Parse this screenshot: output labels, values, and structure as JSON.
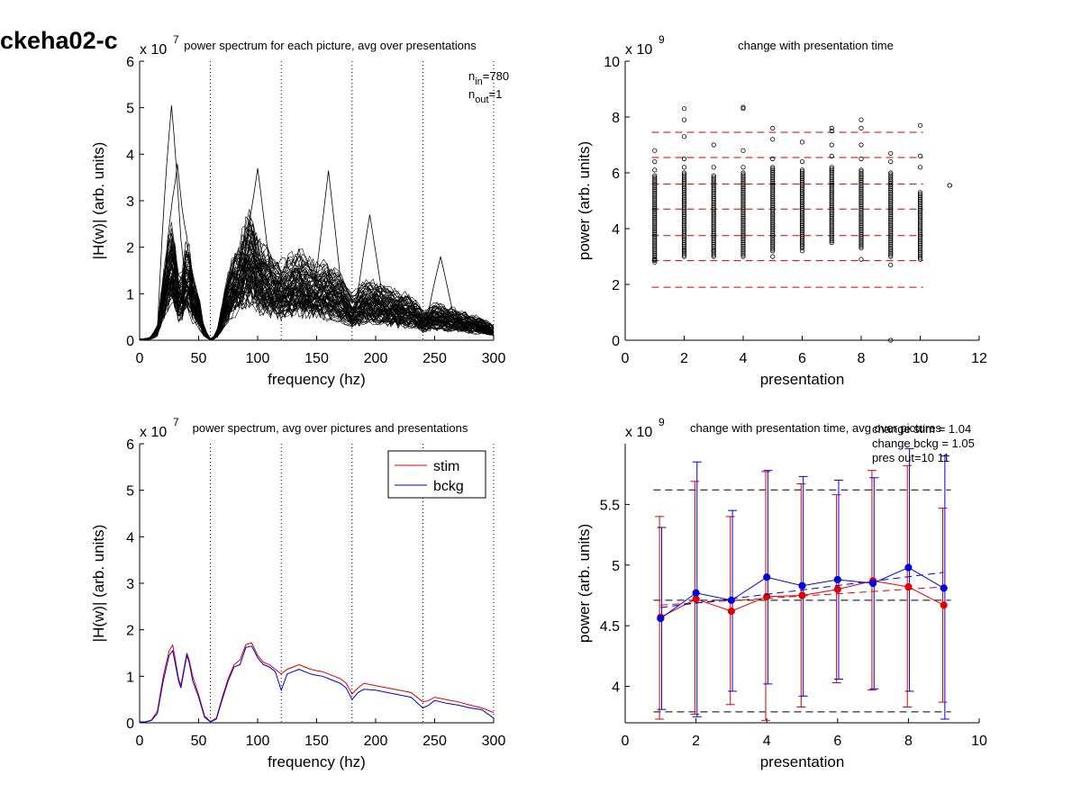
{
  "figure_title": "ckeha02-c",
  "chart_data": [
    {
      "id": "tl",
      "type": "line",
      "title": "power spectrum for each picture, avg over presentations",
      "xlabel": "frequency (hz)",
      "ylabel": "|H(w)| (arb. units)",
      "y_multiplier": "x 10",
      "y_exponent": "7",
      "xlim": [
        0,
        300
      ],
      "ylim": [
        0,
        6
      ],
      "xticks": [
        0,
        50,
        100,
        150,
        200,
        250,
        300
      ],
      "yticks": [
        0,
        1,
        2,
        3,
        4,
        5,
        6
      ],
      "vlines": [
        60,
        120,
        180,
        240,
        300
      ],
      "annotations": [
        {
          "base": "n",
          "sub": "in",
          "text": "=780"
        },
        {
          "base": "n",
          "sub": "out",
          "text": "=1"
        }
      ],
      "mean_curve": {
        "x": [
          0,
          5,
          10,
          15,
          20,
          25,
          28,
          30,
          33,
          35,
          40,
          42,
          45,
          50,
          55,
          60,
          65,
          70,
          75,
          80,
          85,
          90,
          95,
          100,
          105,
          110,
          115,
          120,
          125,
          130,
          135,
          140,
          145,
          150,
          155,
          160,
          165,
          170,
          175,
          180,
          185,
          190,
          200,
          210,
          220,
          230,
          240,
          245,
          250,
          260,
          270,
          280,
          290,
          300
        ],
        "y": [
          0.02,
          0.02,
          0.05,
          0.2,
          0.9,
          1.5,
          1.6,
          1.3,
          0.9,
          0.75,
          1.45,
          1.3,
          0.9,
          0.6,
          0.15,
          0.02,
          0.08,
          0.5,
          0.9,
          1.2,
          1.3,
          1.65,
          1.7,
          1.4,
          1.25,
          1.2,
          1.1,
          1.05,
          1.1,
          1.15,
          1.2,
          1.15,
          1.1,
          1.05,
          1.05,
          1.0,
          0.95,
          0.9,
          0.75,
          0.6,
          0.7,
          0.8,
          0.78,
          0.72,
          0.65,
          0.6,
          0.4,
          0.42,
          0.5,
          0.45,
          0.4,
          0.35,
          0.3,
          0.2
        ]
      },
      "peaks": [
        {
          "x": 27,
          "y": 5.05
        },
        {
          "x": 32,
          "y": 3.8
        },
        {
          "x": 100,
          "y": 3.7
        },
        {
          "x": 160,
          "y": 3.65
        },
        {
          "x": 195,
          "y": 2.7
        },
        {
          "x": 255,
          "y": 1.8
        }
      ]
    },
    {
      "id": "tr",
      "type": "scatter",
      "title": "change with presentation time",
      "xlabel": "presentation",
      "ylabel": "power (arb. units)",
      "y_multiplier": "x 10",
      "y_exponent": "9",
      "xlim": [
        0,
        12
      ],
      "ylim": [
        0,
        10
      ],
      "xticks": [
        0,
        2,
        4,
        6,
        8,
        10,
        12
      ],
      "yticks": [
        0,
        2,
        4,
        6,
        8,
        10
      ],
      "hlines": [
        1.9,
        2.85,
        3.75,
        4.7,
        5.6,
        6.55,
        7.45
      ],
      "hline_xrange": [
        1,
        10
      ],
      "columns": [
        {
          "x": 1,
          "min": 2.8,
          "max": 5.9,
          "outliers": [
            6.1,
            6.4,
            6.8,
            2.9
          ]
        },
        {
          "x": 2,
          "min": 3.0,
          "max": 6.0,
          "outliers": [
            6.5,
            7.3,
            7.9,
            8.3,
            3.2,
            6.2
          ]
        },
        {
          "x": 3,
          "min": 3.0,
          "max": 5.9,
          "outliers": [
            6.2,
            7.0,
            3.2
          ]
        },
        {
          "x": 4,
          "min": 3.0,
          "max": 6.0,
          "outliers": [
            6.2,
            6.8,
            8.3,
            8.35
          ]
        },
        {
          "x": 5,
          "min": 3.2,
          "max": 6.2,
          "outliers": [
            7.2,
            7.6,
            6.5,
            3.0
          ]
        },
        {
          "x": 6,
          "min": 3.3,
          "max": 6.1,
          "outliers": [
            7.1,
            6.4,
            3.2
          ]
        },
        {
          "x": 7,
          "min": 3.5,
          "max": 6.2,
          "outliers": [
            7.0,
            7.5,
            7.6,
            6.6
          ]
        },
        {
          "x": 8,
          "min": 3.3,
          "max": 6.1,
          "outliers": [
            7.0,
            7.6,
            7.9,
            2.9,
            6.5
          ]
        },
        {
          "x": 9,
          "min": 3.0,
          "max": 6.0,
          "outliers": [
            6.4,
            6.7,
            2.7,
            0.0
          ]
        },
        {
          "x": 10,
          "min": 2.9,
          "max": 5.3,
          "outliers": [
            6.2,
            6.6,
            7.7
          ]
        },
        {
          "x": 11,
          "min": 5.55,
          "max": 5.55,
          "outliers": []
        }
      ]
    },
    {
      "id": "bl",
      "type": "line",
      "title": "power spectrum, avg over pictures and presentations",
      "xlabel": "frequency (hz)",
      "ylabel": "|H(w)| (arb. units)",
      "y_multiplier": "x 10",
      "y_exponent": "7",
      "xlim": [
        0,
        300
      ],
      "ylim": [
        0,
        6
      ],
      "xticks": [
        0,
        50,
        100,
        150,
        200,
        250,
        300
      ],
      "yticks": [
        0,
        1,
        2,
        3,
        4,
        5,
        6
      ],
      "vlines": [
        60,
        120,
        180,
        240,
        300
      ],
      "legend": {
        "position": "top-right"
      },
      "series": [
        {
          "name": "stim",
          "color": "#e00000",
          "x": [
            0,
            5,
            10,
            15,
            20,
            25,
            28,
            30,
            33,
            35,
            40,
            42,
            45,
            50,
            55,
            60,
            65,
            70,
            75,
            80,
            85,
            90,
            95,
            100,
            105,
            110,
            115,
            120,
            125,
            130,
            135,
            140,
            145,
            150,
            155,
            160,
            165,
            170,
            175,
            180,
            185,
            190,
            200,
            210,
            220,
            230,
            240,
            245,
            250,
            260,
            270,
            280,
            290,
            300
          ],
          "y": [
            0.02,
            0.02,
            0.06,
            0.25,
            1.0,
            1.55,
            1.67,
            1.4,
            0.95,
            0.8,
            1.5,
            1.35,
            1.0,
            0.6,
            0.15,
            0.03,
            0.1,
            0.55,
            0.95,
            1.25,
            1.35,
            1.68,
            1.72,
            1.45,
            1.3,
            1.25,
            1.15,
            1.05,
            1.15,
            1.2,
            1.25,
            1.2,
            1.15,
            1.12,
            1.1,
            1.05,
            1.0,
            0.95,
            0.85,
            0.62,
            0.75,
            0.85,
            0.8,
            0.75,
            0.7,
            0.65,
            0.45,
            0.48,
            0.55,
            0.5,
            0.45,
            0.38,
            0.32,
            0.22
          ]
        },
        {
          "name": "bckg",
          "color": "#0000d0",
          "x": [
            0,
            5,
            10,
            15,
            20,
            25,
            28,
            30,
            33,
            35,
            40,
            42,
            45,
            50,
            55,
            60,
            65,
            70,
            75,
            80,
            85,
            90,
            95,
            100,
            105,
            110,
            115,
            120,
            125,
            130,
            135,
            140,
            145,
            150,
            155,
            160,
            165,
            170,
            175,
            180,
            185,
            190,
            200,
            210,
            220,
            230,
            240,
            245,
            250,
            260,
            270,
            280,
            290,
            300
          ],
          "y": [
            0.02,
            0.02,
            0.05,
            0.2,
            0.9,
            1.45,
            1.55,
            1.3,
            0.9,
            0.75,
            1.45,
            1.3,
            0.9,
            0.55,
            0.12,
            0.02,
            0.08,
            0.5,
            0.9,
            1.2,
            1.25,
            1.62,
            1.65,
            1.4,
            1.25,
            1.2,
            1.1,
            0.7,
            1.05,
            1.1,
            1.15,
            1.1,
            1.05,
            1.02,
            1.0,
            0.95,
            0.9,
            0.85,
            0.75,
            0.5,
            0.65,
            0.72,
            0.7,
            0.65,
            0.6,
            0.55,
            0.32,
            0.38,
            0.48,
            0.42,
            0.38,
            0.32,
            0.28,
            0.1
          ]
        }
      ]
    },
    {
      "id": "br",
      "type": "line",
      "title": "change with presentation time, avg over pictures",
      "xlabel": "presentation",
      "ylabel": "power (arb. units)",
      "y_multiplier": "x 10",
      "y_exponent": "9",
      "xlim": [
        0,
        10
      ],
      "ylim": [
        3.7,
        6
      ],
      "xticks": [
        0,
        2,
        4,
        6,
        8,
        10
      ],
      "yticks": [
        4,
        4.5,
        5,
        5.5
      ],
      "annotations": [
        "change stim = 1.04",
        "change bckg = 1.05",
        "pres out=10 11"
      ],
      "hlines": [
        3.79,
        4.71,
        5.62
      ],
      "series": [
        {
          "name": "stim",
          "color": "#e00000",
          "x": [
            1,
            2,
            3,
            4,
            5,
            6,
            7,
            8,
            9
          ],
          "y": [
            4.57,
            4.72,
            4.62,
            4.74,
            4.75,
            4.8,
            4.87,
            4.82,
            4.67
          ],
          "err_low": [
            3.73,
            3.77,
            3.85,
            3.72,
            3.83,
            4.03,
            3.97,
            3.83,
            3.87
          ],
          "err_high": [
            5.4,
            5.69,
            5.4,
            5.77,
            5.67,
            5.58,
            5.78,
            5.82,
            5.47
          ],
          "trend": [
            4.67,
            4.82
          ]
        },
        {
          "name": "bckg",
          "color": "#0000e0",
          "x": [
            1,
            2,
            3,
            4,
            5,
            6,
            7,
            8,
            9
          ],
          "y": [
            4.56,
            4.77,
            4.71,
            4.9,
            4.83,
            4.88,
            4.85,
            4.98,
            4.81
          ],
          "err_low": [
            3.81,
            3.75,
            3.96,
            4.02,
            3.92,
            4.06,
            3.98,
            3.96,
            3.73
          ],
          "err_high": [
            5.31,
            5.85,
            5.45,
            5.78,
            5.73,
            5.7,
            5.72,
            5.96,
            5.9
          ],
          "trend": [
            4.65,
            4.94
          ]
        }
      ]
    }
  ]
}
